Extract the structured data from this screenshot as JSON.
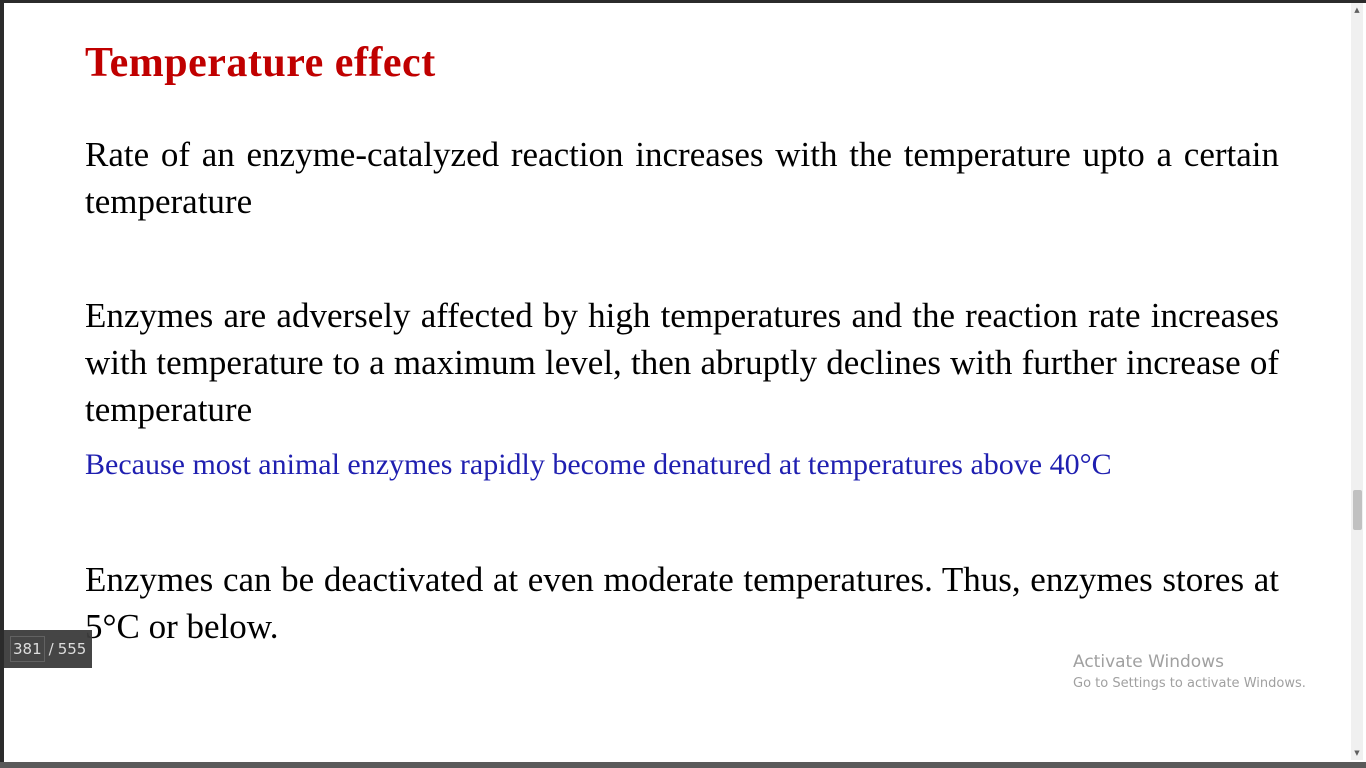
{
  "slide": {
    "title": "Temperature effect",
    "paragraph_1": "Rate of an enzyme-catalyzed reaction increases with the temperature upto a certain temperature",
    "paragraph_2": "Enzymes are adversely affected by high temperatures and the reaction rate increases with temperature to a maximum level, then abruptly declines with further increase of temperature",
    "paragraph_3": "Because most animal enzymes rapidly become denatured at temperatures above 40°C",
    "paragraph_4": "Enzymes can be deactivated at even moderate temperatures. Thus, enzymes stores at 5°C or below.",
    "title_color": "#c00000",
    "highlight_color": "#1f1fb0"
  },
  "page_counter": {
    "current": "381",
    "separator": "/",
    "total": "555"
  },
  "watermark": {
    "title": "Activate Windows",
    "subtitle": "Go to Settings to activate Windows."
  },
  "scrollbar": {
    "up_icon": "▲",
    "down_icon": "▼"
  }
}
